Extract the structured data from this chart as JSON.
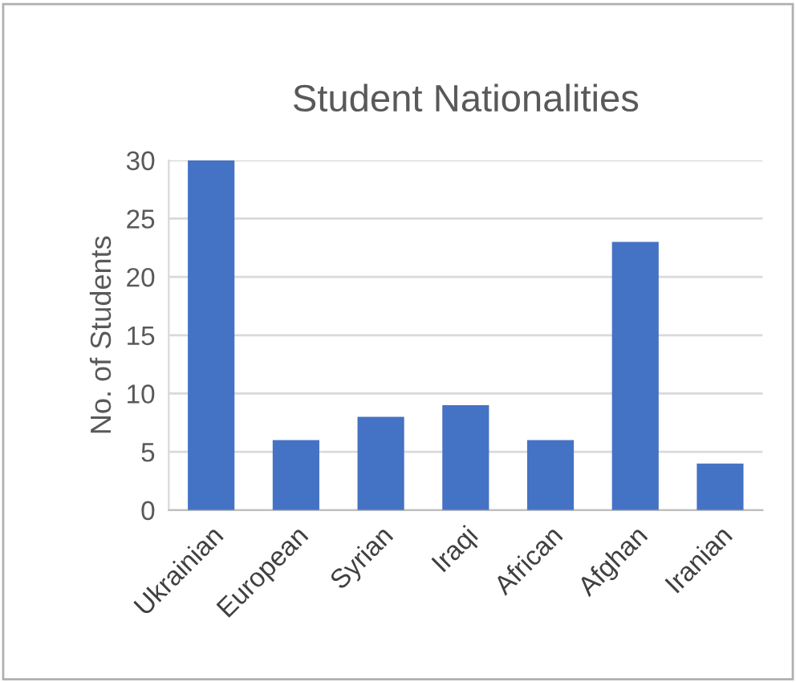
{
  "chart_data": {
    "type": "bar",
    "title": "Student Nationalities",
    "ylabel": "No. of Students",
    "categories": [
      "Ukrainian",
      "European",
      "Syrian",
      "Iraqi",
      "African",
      "Afghan",
      "Iranian"
    ],
    "values": [
      30,
      6,
      8,
      9,
      6,
      23,
      4
    ],
    "color": "#4472c4",
    "ylim": [
      0,
      30
    ],
    "yticks": [
      0,
      5,
      10,
      15,
      20,
      25,
      30
    ],
    "grid": "y",
    "legend": false
  }
}
